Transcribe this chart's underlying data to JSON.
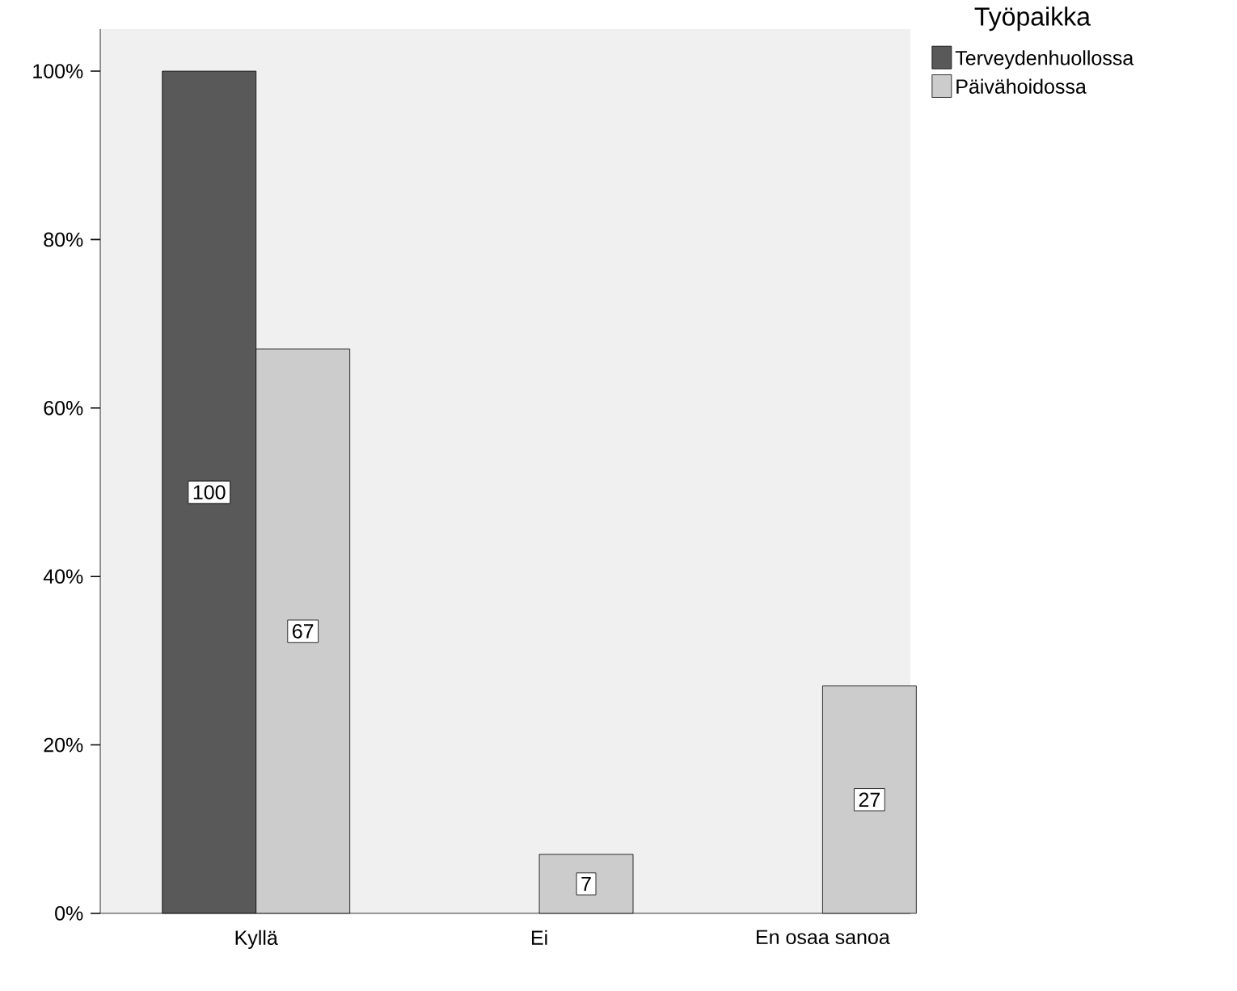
{
  "chart_data": {
    "type": "bar",
    "categories": [
      "Kyllä",
      "Ei",
      "En osaa sanoa"
    ],
    "series": [
      {
        "name": "Terveydenhuollossa",
        "color": "#595959",
        "values": [
          100,
          null,
          null
        ],
        "value_labels": [
          "100",
          null,
          null
        ]
      },
      {
        "name": "Päivähoidossa",
        "color": "#cccccc",
        "values": [
          67,
          7,
          27
        ],
        "value_labels": [
          "67",
          "7",
          "27"
        ]
      }
    ],
    "legend_title": "Työpaikka",
    "legend": "right",
    "ylim": [
      0,
      105
    ],
    "yticks": [
      {
        "value": 0,
        "label": "0%"
      },
      {
        "value": 20,
        "label": "20%"
      },
      {
        "value": 40,
        "label": "40%"
      },
      {
        "value": 60,
        "label": "60%"
      },
      {
        "value": 80,
        "label": "80%"
      },
      {
        "value": 100,
        "label": "100%"
      }
    ],
    "grid": false
  }
}
